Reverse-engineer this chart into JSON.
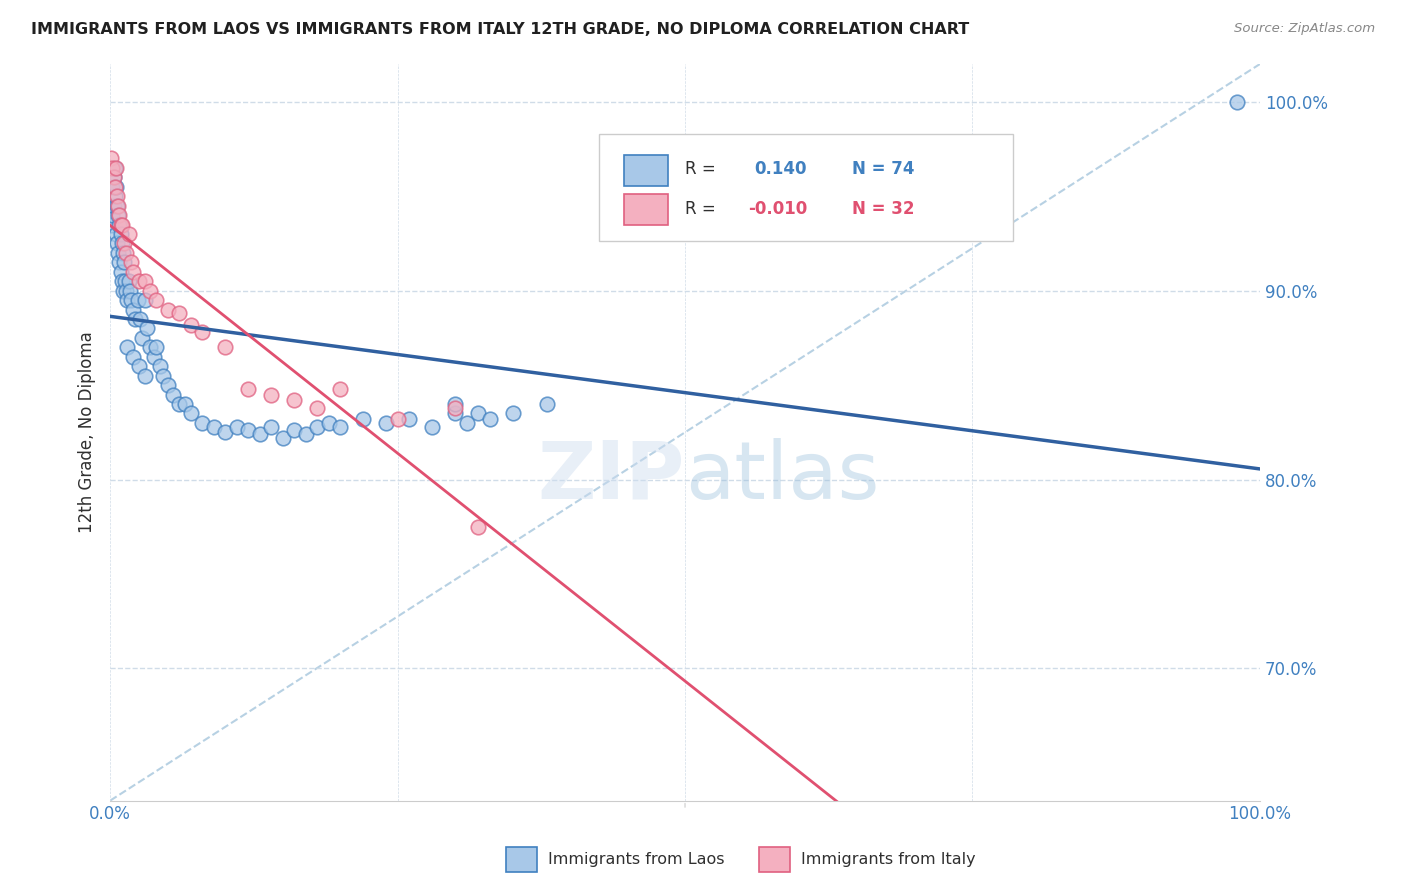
{
  "title": "IMMIGRANTS FROM LAOS VS IMMIGRANTS FROM ITALY 12TH GRADE, NO DIPLOMA CORRELATION CHART",
  "source": "Source: ZipAtlas.com",
  "ylabel": "12th Grade, No Diploma",
  "xlim": [
    0.0,
    1.0
  ],
  "ylim": [
    0.63,
    1.02
  ],
  "legend_labels": [
    "Immigrants from Laos",
    "Immigrants from Italy"
  ],
  "R_laos": 0.14,
  "N_laos": 74,
  "R_italy": -0.01,
  "N_italy": 32,
  "color_laos_fill": "#a8c8e8",
  "color_italy_fill": "#f4b0c0",
  "color_laos_edge": "#4080c0",
  "color_italy_edge": "#e06080",
  "color_laos_line": "#3060a0",
  "color_italy_line": "#e05070",
  "color_diag_line": "#b0cce0",
  "background_color": "#ffffff",
  "grid_color": "#d0dce8",
  "title_color": "#202020",
  "axis_color": "#4080c0",
  "laos_x": [
    0.001,
    0.002,
    0.002,
    0.003,
    0.003,
    0.004,
    0.004,
    0.005,
    0.005,
    0.006,
    0.006,
    0.007,
    0.007,
    0.008,
    0.008,
    0.009,
    0.009,
    0.01,
    0.01,
    0.011,
    0.011,
    0.012,
    0.013,
    0.014,
    0.015,
    0.016,
    0.017,
    0.018,
    0.02,
    0.022,
    0.024,
    0.026,
    0.028,
    0.03,
    0.032,
    0.035,
    0.038,
    0.04,
    0.043,
    0.046,
    0.05,
    0.055,
    0.06,
    0.065,
    0.07,
    0.08,
    0.09,
    0.1,
    0.11,
    0.12,
    0.13,
    0.14,
    0.15,
    0.16,
    0.17,
    0.18,
    0.19,
    0.2,
    0.22,
    0.24,
    0.26,
    0.28,
    0.3,
    0.31,
    0.32,
    0.33,
    0.35,
    0.38,
    0.015,
    0.02,
    0.025,
    0.03,
    0.98,
    0.3
  ],
  "laos_y": [
    0.935,
    0.94,
    0.955,
    0.945,
    0.96,
    0.95,
    0.965,
    0.955,
    0.93,
    0.945,
    0.925,
    0.94,
    0.92,
    0.935,
    0.915,
    0.93,
    0.91,
    0.925,
    0.905,
    0.92,
    0.9,
    0.915,
    0.905,
    0.9,
    0.895,
    0.905,
    0.9,
    0.895,
    0.89,
    0.885,
    0.895,
    0.885,
    0.875,
    0.895,
    0.88,
    0.87,
    0.865,
    0.87,
    0.86,
    0.855,
    0.85,
    0.845,
    0.84,
    0.84,
    0.835,
    0.83,
    0.828,
    0.825,
    0.828,
    0.826,
    0.824,
    0.828,
    0.822,
    0.826,
    0.824,
    0.828,
    0.83,
    0.828,
    0.832,
    0.83,
    0.832,
    0.828,
    0.835,
    0.83,
    0.835,
    0.832,
    0.835,
    0.84,
    0.87,
    0.865,
    0.86,
    0.855,
    1.0,
    0.84
  ],
  "italy_x": [
    0.001,
    0.002,
    0.003,
    0.004,
    0.005,
    0.006,
    0.007,
    0.008,
    0.009,
    0.01,
    0.012,
    0.014,
    0.016,
    0.018,
    0.02,
    0.025,
    0.03,
    0.035,
    0.04,
    0.05,
    0.06,
    0.07,
    0.08,
    0.1,
    0.12,
    0.14,
    0.16,
    0.18,
    0.2,
    0.25,
    0.3,
    0.32
  ],
  "italy_y": [
    0.97,
    0.965,
    0.96,
    0.955,
    0.965,
    0.95,
    0.945,
    0.94,
    0.935,
    0.935,
    0.925,
    0.92,
    0.93,
    0.915,
    0.91,
    0.905,
    0.905,
    0.9,
    0.895,
    0.89,
    0.888,
    0.882,
    0.878,
    0.87,
    0.848,
    0.845,
    0.842,
    0.838,
    0.848,
    0.832,
    0.838,
    0.775
  ]
}
